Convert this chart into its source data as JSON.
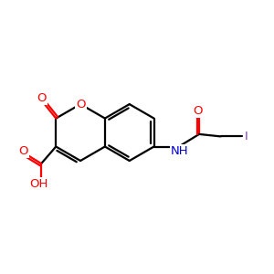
{
  "bg_color": "#ffffff",
  "bond_color": "#000000",
  "bond_width": 1.6,
  "atom_colors": {
    "O": "#ff0000",
    "N": "#0000cc",
    "I": "#7b3fb8",
    "C": "#000000",
    "H": "#000000"
  },
  "figsize": [
    3.0,
    3.0
  ],
  "dpi": 100,
  "xlim": [
    0,
    12
  ],
  "ylim": [
    0,
    10
  ]
}
